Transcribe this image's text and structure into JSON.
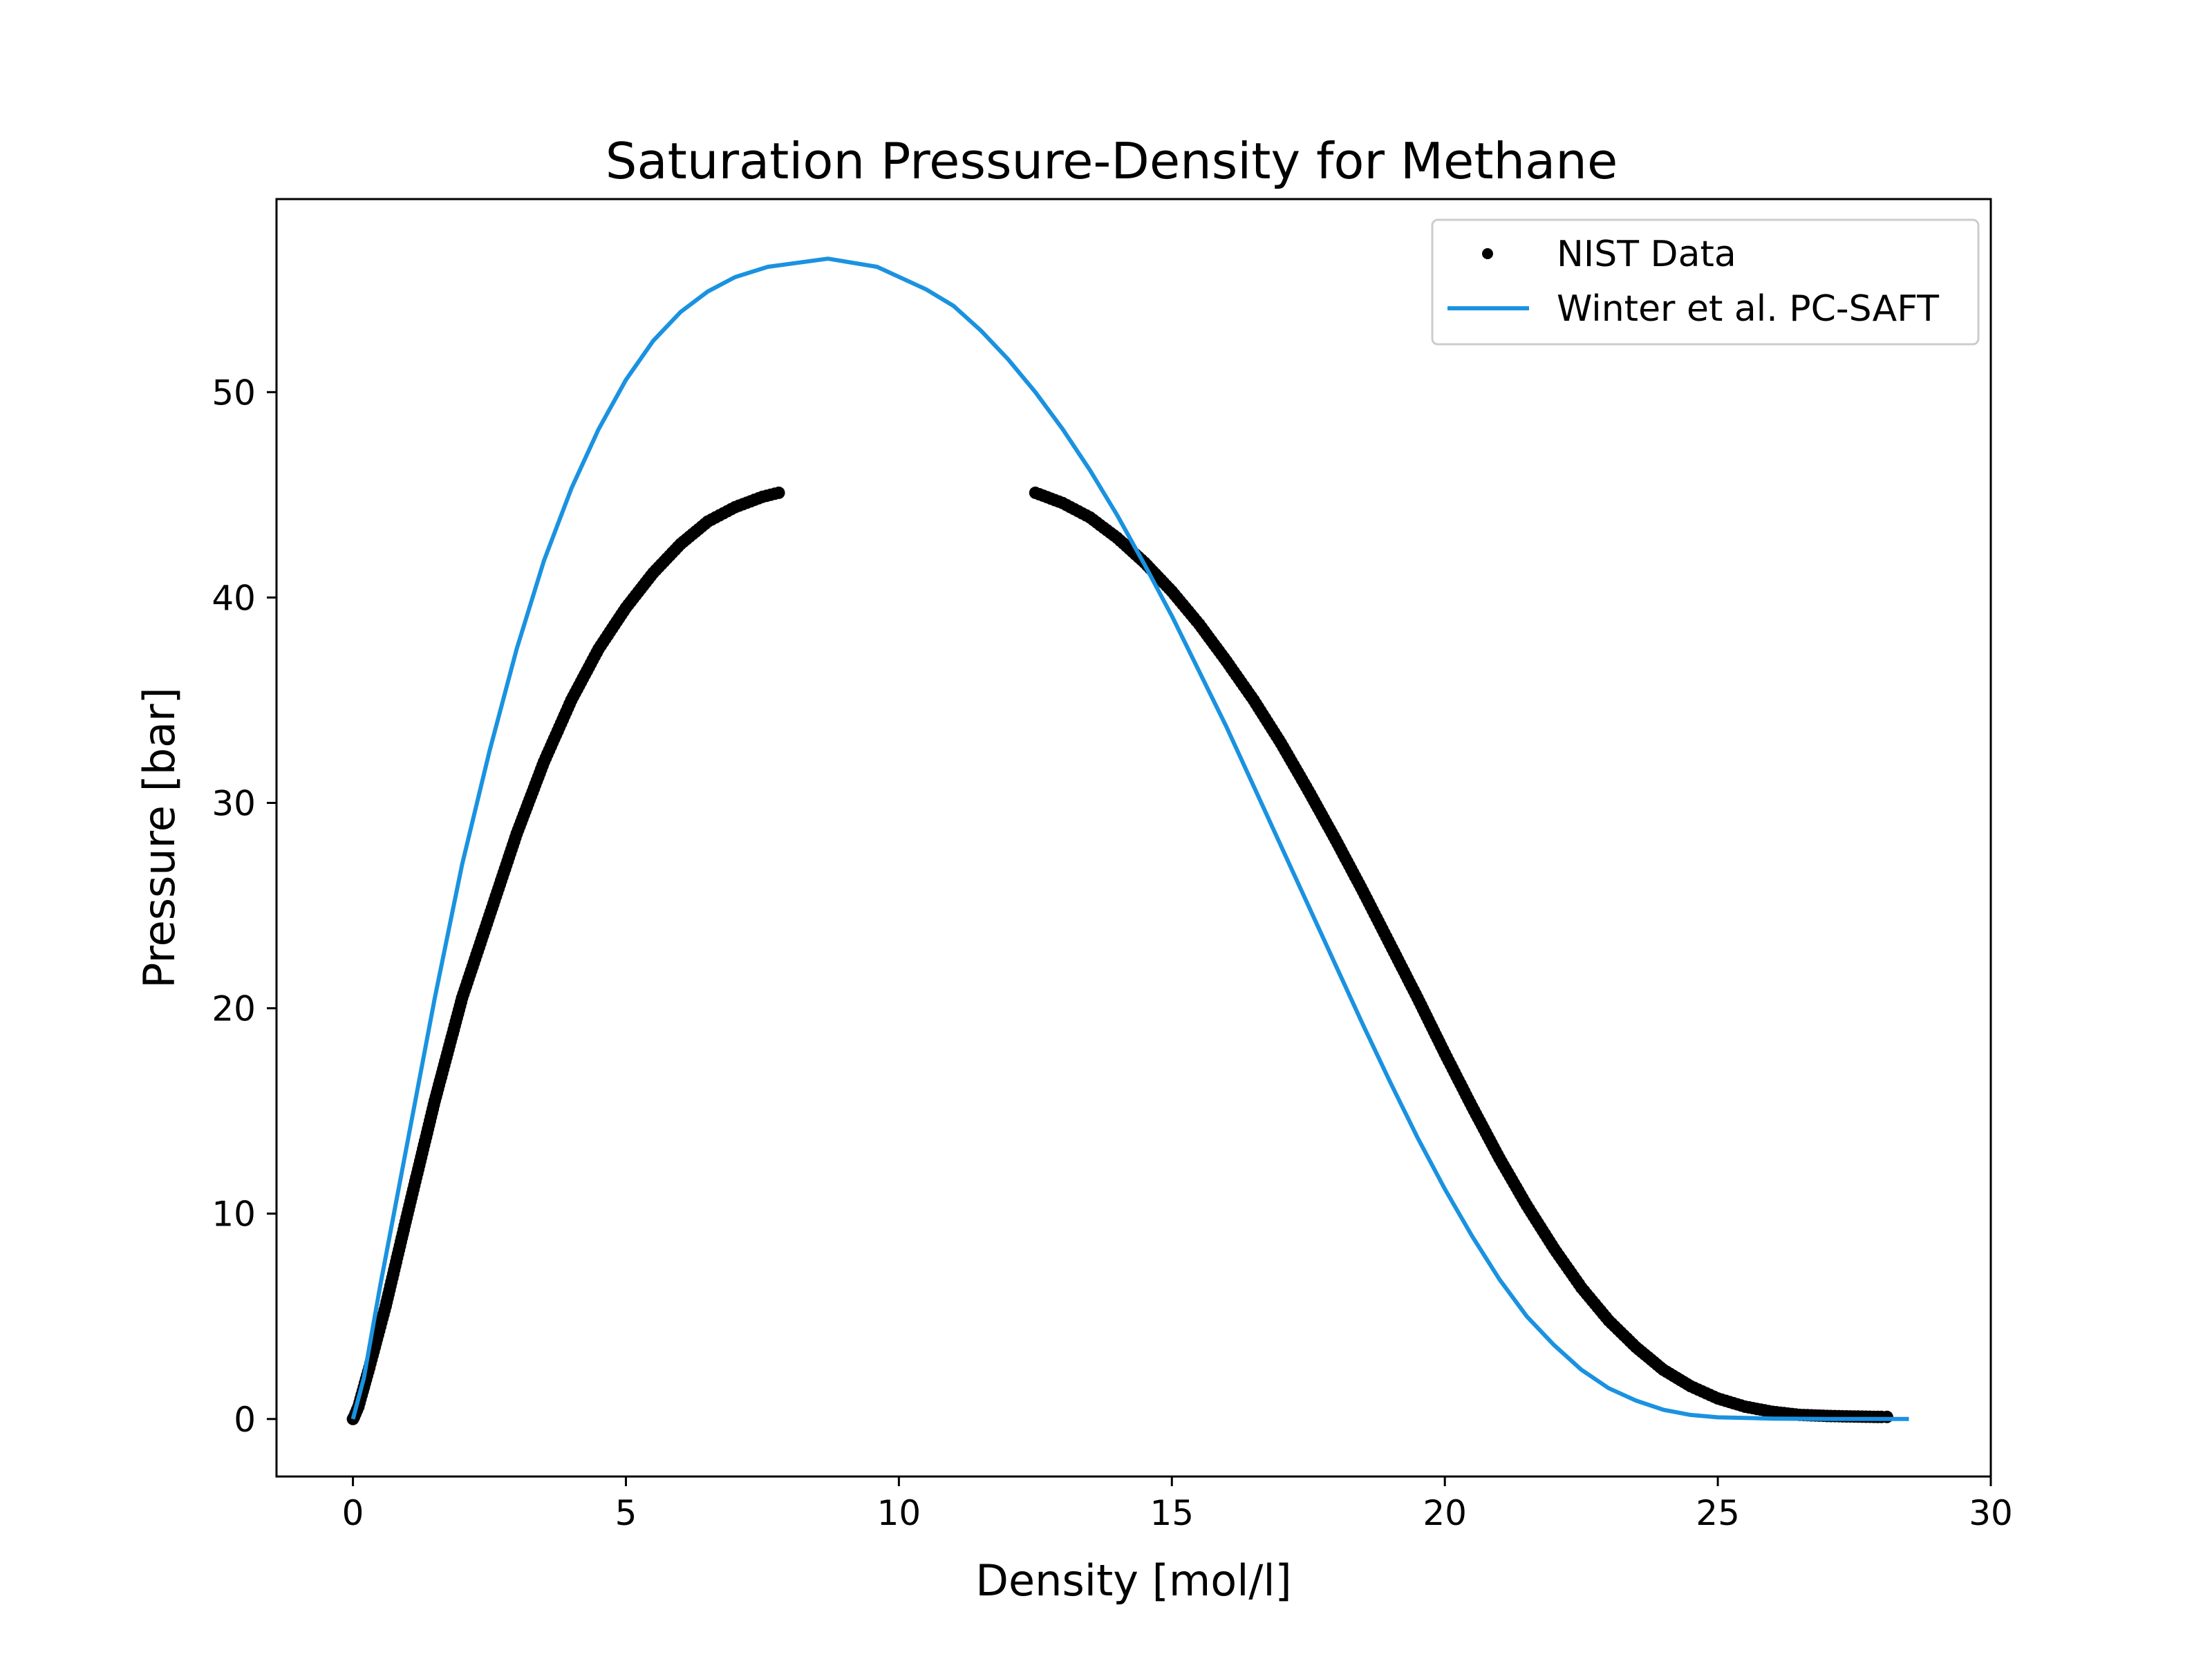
{
  "chart_data": {
    "type": "scatter",
    "title": "Saturation Pressure-Density for Methane",
    "xlabel": "Density [mol/l]",
    "ylabel": "Pressure [bar]",
    "xlim": [
      -1.4,
      30
    ],
    "ylim": [
      -2.8,
      59.4
    ],
    "xticks": [
      0,
      5,
      10,
      15,
      20,
      25,
      30
    ],
    "yticks": [
      0,
      10,
      20,
      30,
      40,
      50
    ],
    "grid": false,
    "legend_position": "top-right",
    "series": [
      {
        "name": "NIST Data",
        "kind": "scatter",
        "color": "#000000",
        "points": [
          [
            0.0,
            0.0
          ],
          [
            0.02,
            0.1
          ],
          [
            0.1,
            0.6
          ],
          [
            0.3,
            2.5
          ],
          [
            0.6,
            5.5
          ],
          [
            1.0,
            10.0
          ],
          [
            1.5,
            15.5
          ],
          [
            2.0,
            20.5
          ],
          [
            2.5,
            24.5
          ],
          [
            3.0,
            28.5
          ],
          [
            3.5,
            32.0
          ],
          [
            4.0,
            35.0
          ],
          [
            4.5,
            37.5
          ],
          [
            5.0,
            39.5
          ],
          [
            5.5,
            41.2
          ],
          [
            6.0,
            42.6
          ],
          [
            6.5,
            43.7
          ],
          [
            7.0,
            44.4
          ],
          [
            7.5,
            44.9
          ],
          [
            7.8,
            45.1
          ],
          [
            12.5,
            45.1
          ],
          [
            13.0,
            44.6
          ],
          [
            13.5,
            43.9
          ],
          [
            14.0,
            42.9
          ],
          [
            14.5,
            41.7
          ],
          [
            15.0,
            40.3
          ],
          [
            15.5,
            38.7
          ],
          [
            16.0,
            36.9
          ],
          [
            16.5,
            35.0
          ],
          [
            17.0,
            32.9
          ],
          [
            17.5,
            30.6
          ],
          [
            18.0,
            28.2
          ],
          [
            18.5,
            25.7
          ],
          [
            19.0,
            23.1
          ],
          [
            19.5,
            20.5
          ],
          [
            20.0,
            17.8
          ],
          [
            20.5,
            15.2
          ],
          [
            21.0,
            12.7
          ],
          [
            21.5,
            10.4
          ],
          [
            22.0,
            8.3
          ],
          [
            22.5,
            6.4
          ],
          [
            23.0,
            4.8
          ],
          [
            23.5,
            3.5
          ],
          [
            24.0,
            2.4
          ],
          [
            24.5,
            1.6
          ],
          [
            25.0,
            1.0
          ],
          [
            25.5,
            0.6
          ],
          [
            26.0,
            0.35
          ],
          [
            26.5,
            0.2
          ],
          [
            27.0,
            0.15
          ],
          [
            27.5,
            0.12
          ],
          [
            28.0,
            0.1
          ],
          [
            28.1,
            0.1
          ]
        ]
      },
      {
        "name": "Winter et al. PC-SAFT",
        "kind": "line",
        "color": "#1a92e0",
        "points": [
          [
            0.0,
            0.0
          ],
          [
            0.2,
            2.0
          ],
          [
            0.5,
            6.5
          ],
          [
            1.0,
            13.5
          ],
          [
            1.5,
            20.5
          ],
          [
            2.0,
            27.0
          ],
          [
            2.5,
            32.5
          ],
          [
            3.0,
            37.5
          ],
          [
            3.5,
            41.8
          ],
          [
            4.0,
            45.3
          ],
          [
            4.5,
            48.2
          ],
          [
            5.0,
            50.6
          ],
          [
            5.5,
            52.5
          ],
          [
            6.0,
            53.9
          ],
          [
            6.5,
            54.9
          ],
          [
            7.0,
            55.6
          ],
          [
            7.6,
            56.1
          ],
          [
            8.7,
            56.5
          ],
          [
            9.6,
            56.1
          ],
          [
            10.5,
            55.0
          ],
          [
            11.0,
            54.2
          ],
          [
            11.5,
            53.0
          ],
          [
            12.0,
            51.6
          ],
          [
            12.5,
            50.0
          ],
          [
            13.0,
            48.2
          ],
          [
            13.5,
            46.2
          ],
          [
            14.0,
            44.0
          ],
          [
            14.5,
            41.6
          ],
          [
            15.0,
            39.1
          ],
          [
            15.5,
            36.4
          ],
          [
            16.0,
            33.7
          ],
          [
            16.5,
            30.8
          ],
          [
            17.0,
            27.9
          ],
          [
            17.5,
            25.0
          ],
          [
            18.0,
            22.1
          ],
          [
            18.5,
            19.2
          ],
          [
            19.0,
            16.4
          ],
          [
            19.5,
            13.7
          ],
          [
            20.0,
            11.2
          ],
          [
            20.5,
            8.9
          ],
          [
            21.0,
            6.8
          ],
          [
            21.5,
            5.0
          ],
          [
            22.0,
            3.6
          ],
          [
            22.5,
            2.4
          ],
          [
            23.0,
            1.5
          ],
          [
            23.5,
            0.9
          ],
          [
            24.0,
            0.45
          ],
          [
            24.5,
            0.2
          ],
          [
            25.0,
            0.08
          ],
          [
            26.0,
            0.02
          ],
          [
            27.0,
            0.0
          ],
          [
            28.5,
            0.0
          ]
        ]
      }
    ]
  }
}
